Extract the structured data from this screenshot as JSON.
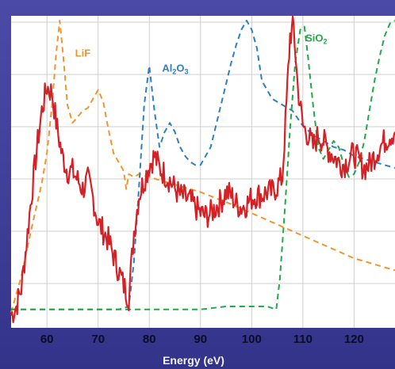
{
  "chart_data": {
    "type": "line",
    "xlabel": "Energy (eV)",
    "xlim": [
      53,
      128
    ],
    "ylim": [
      0,
      1
    ],
    "grid": true,
    "x_ticks": [
      60,
      70,
      80,
      90,
      100,
      110,
      120
    ],
    "annotations": [
      {
        "text": "LiF",
        "color": "#f0962c",
        "x": 65.5,
        "y": 0.88
      },
      {
        "text": "Al",
        "sub": "2",
        "tail": "O",
        "sub2": "3",
        "color": "#2f7fc1",
        "x": 82.5,
        "y": 0.83
      },
      {
        "text": "SiO",
        "sub": "2",
        "color": "#23a84a",
        "x": 110.5,
        "y": 0.93
      }
    ],
    "series": [
      {
        "color": "#d42126",
        "style": "solid",
        "x": [
          53,
          54,
          55,
          56,
          57,
          58,
          59,
          60,
          61,
          62,
          63,
          64,
          65,
          66,
          67,
          68,
          69,
          70,
          71,
          72,
          73,
          74,
          75,
          76,
          77,
          78,
          79,
          80,
          81,
          82,
          83,
          84,
          85,
          86,
          87,
          88,
          89,
          90,
          91,
          92,
          93,
          94,
          95,
          96,
          97,
          98,
          99,
          100,
          101,
          102,
          103,
          104,
          105,
          106,
          106.8,
          107.5,
          108.2,
          109,
          110,
          111,
          112,
          113,
          114,
          115,
          116,
          117,
          118,
          119,
          120,
          121,
          122,
          123,
          124,
          125,
          126,
          127,
          128
        ],
        "y": [
          0.02,
          0.05,
          0.11,
          0.26,
          0.42,
          0.57,
          0.7,
          0.78,
          0.76,
          0.64,
          0.55,
          0.5,
          0.5,
          0.47,
          0.44,
          0.47,
          0.41,
          0.33,
          0.3,
          0.27,
          0.22,
          0.17,
          0.12,
          0.08,
          0.3,
          0.42,
          0.47,
          0.52,
          0.55,
          0.51,
          0.49,
          0.47,
          0.44,
          0.42,
          0.41,
          0.4,
          0.38,
          0.36,
          0.35,
          0.36,
          0.38,
          0.4,
          0.43,
          0.42,
          0.39,
          0.38,
          0.39,
          0.41,
          0.42,
          0.42,
          0.43,
          0.43,
          0.45,
          0.48,
          0.72,
          0.95,
          0.98,
          0.78,
          0.65,
          0.62,
          0.58,
          0.62,
          0.6,
          0.57,
          0.55,
          0.53,
          0.52,
          0.54,
          0.56,
          0.53,
          0.51,
          0.52,
          0.55,
          0.58,
          0.6,
          0.62,
          0.63
        ]
      },
      {
        "color": "#f0962c",
        "style": "dashed",
        "x": [
          53,
          55,
          57,
          59,
          60,
          61,
          61.8,
          62.5,
          63.2,
          64,
          65,
          66,
          67,
          68,
          69,
          70,
          71,
          72,
          73,
          74,
          75,
          75.5,
          76,
          77,
          78,
          80,
          82,
          84,
          86,
          88,
          90,
          93,
          96,
          100,
          104,
          108,
          112,
          116,
          120,
          124,
          128
        ],
        "y": [
          0.03,
          0.15,
          0.31,
          0.46,
          0.56,
          0.72,
          0.89,
          1.0,
          0.88,
          0.72,
          0.66,
          0.68,
          0.7,
          0.71,
          0.74,
          0.77,
          0.73,
          0.64,
          0.56,
          0.53,
          0.5,
          0.44,
          0.49,
          0.48,
          0.49,
          0.48,
          0.47,
          0.46,
          0.45,
          0.44,
          0.43,
          0.41,
          0.39,
          0.36,
          0.33,
          0.3,
          0.27,
          0.24,
          0.21,
          0.19,
          0.17
        ]
      },
      {
        "color": "#2f7fc1",
        "style": "dashed",
        "x": [
          53,
          60,
          65,
          70,
          74,
          76,
          77,
          78,
          79,
          80,
          81,
          82,
          83,
          84,
          85,
          86,
          87,
          88,
          89,
          90,
          92,
          94,
          96,
          97,
          98,
          99,
          100,
          101,
          102,
          104,
          106,
          108,
          110,
          112,
          114,
          116,
          118,
          120,
          122,
          124,
          126,
          128
        ],
        "y": [
          0.04,
          0.04,
          0.04,
          0.04,
          0.04,
          0.05,
          0.2,
          0.45,
          0.72,
          0.85,
          0.7,
          0.58,
          0.63,
          0.66,
          0.63,
          0.58,
          0.55,
          0.53,
          0.52,
          0.52,
          0.58,
          0.72,
          0.86,
          0.92,
          0.97,
          1.0,
          0.97,
          0.91,
          0.8,
          0.74,
          0.72,
          0.7,
          0.65,
          0.62,
          0.6,
          0.58,
          0.57,
          0.55,
          0.54,
          0.53,
          0.52,
          0.51
        ]
      },
      {
        "color": "#23a84a",
        "style": "dashed",
        "x": [
          53,
          60,
          70,
          80,
          90,
          95,
          98,
          100,
          103,
          104.8,
          105.5,
          106.5,
          107.5,
          108.5,
          109.5,
          110.3,
          111,
          112,
          113,
          114,
          115,
          116,
          117,
          118,
          119,
          120,
          121,
          122,
          123,
          124,
          125,
          126,
          127,
          128
        ],
        "y": [
          0.04,
          0.04,
          0.04,
          0.04,
          0.04,
          0.05,
          0.05,
          0.05,
          0.05,
          0.04,
          0.14,
          0.38,
          0.64,
          0.86,
          0.97,
          0.98,
          0.88,
          0.72,
          0.58,
          0.54,
          0.57,
          0.6,
          0.58,
          0.52,
          0.48,
          0.49,
          0.53,
          0.6,
          0.7,
          0.8,
          0.88,
          0.95,
          0.99,
          1.0
        ]
      }
    ]
  }
}
